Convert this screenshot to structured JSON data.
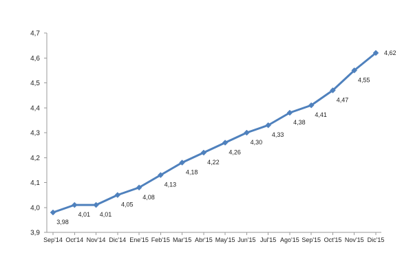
{
  "chart_data": {
    "type": "line",
    "title": "",
    "xlabel": "",
    "ylabel": "",
    "categories": [
      "Sep'14",
      "Oct'14",
      "Nov'14",
      "Dic'14",
      "Ene'15",
      "Feb'15",
      "Mar'15",
      "Abr'15",
      "May'15",
      "Jun'15",
      "Jul'15",
      "Ago'15",
      "Sep'15",
      "Oct'15",
      "Nov'15",
      "Dic'15"
    ],
    "series": [
      {
        "values": [
          3.98,
          4.01,
          4.01,
          4.05,
          4.08,
          4.13,
          4.18,
          4.22,
          4.26,
          4.3,
          4.33,
          4.38,
          4.41,
          4.47,
          4.55,
          4.62
        ],
        "data_labels": [
          "3,98",
          "4,01",
          "4,01",
          "4,05",
          "4,08",
          "4,13",
          "4,18",
          "4,22",
          "4,26",
          "4,30",
          "4,33",
          "4,38",
          "4,41",
          "4,47",
          "4,55",
          "4,62"
        ],
        "color": "#4f81bd"
      }
    ],
    "ylim": [
      3.9,
      4.7
    ],
    "yticks": [
      3.9,
      4.0,
      4.1,
      4.2,
      4.3,
      4.4,
      4.5,
      4.6,
      4.7
    ],
    "ytick_labels": [
      "3,9",
      "4,0",
      "4,1",
      "4,2",
      "4,3",
      "4,4",
      "4,5",
      "4,6",
      "4,7"
    ],
    "grid": false,
    "legend": "none"
  }
}
